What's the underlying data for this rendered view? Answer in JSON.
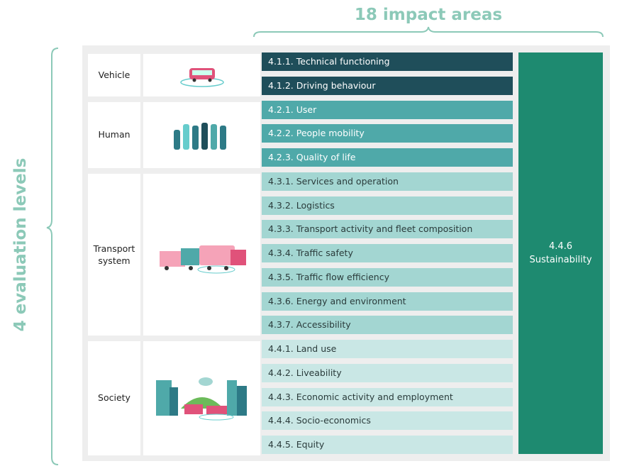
{
  "header": {
    "title": "18 impact areas",
    "side_label": "4 evaluation levels"
  },
  "levels": [
    {
      "name": "Vehicle",
      "items": [
        "4.1.1. Technical functioning",
        "4.1.2. Driving behaviour"
      ]
    },
    {
      "name": "Human",
      "items": [
        "4.2.1. User",
        "4.2.2. People mobility",
        "4.2.3. Quality of life"
      ]
    },
    {
      "name": "Transport system",
      "items": [
        "4.3.1. Services and operation",
        "4.3.2. Logistics",
        "4.3.3. Transport activity and fleet composition",
        "4.3.4. Traffic safety",
        "4.3.5. Traffic flow efficiency",
        "4.3.6. Energy and environment",
        "4.3.7. Accessibility"
      ]
    },
    {
      "name": "Society",
      "items": [
        "4.4.1. Land use",
        "4.4.2. Liveability",
        "4.4.3. Economic activity and employment",
        "4.4.4. Socio-economics",
        "4.4.5. Equity"
      ]
    }
  ],
  "sustainability": {
    "code": "4.4.6",
    "label": "Sustainability"
  }
}
